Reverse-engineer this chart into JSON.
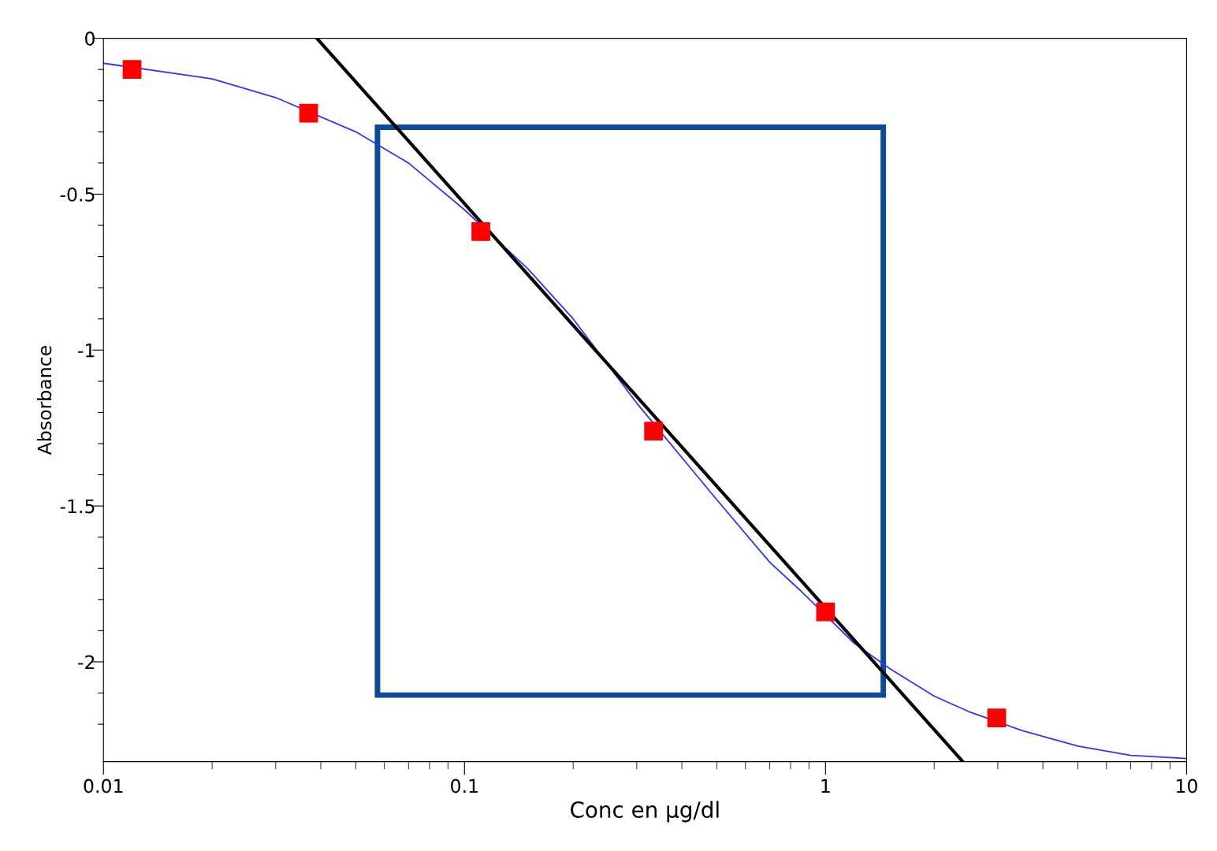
{
  "chart_data": {
    "type": "scatter",
    "xlabel": "Conc en µg/dl",
    "ylabel": "Absorbance",
    "log": "x",
    "grid": false,
    "legend": false,
    "xlim": [
      0.01,
      10
    ],
    "xticks": [
      0.01,
      0.1,
      1,
      10
    ],
    "ylim": [
      -2.32,
      0
    ],
    "yticks": [
      0,
      {
        "value": -0.1,
        "label": null
      },
      {
        "value": -0.2,
        "label": null
      },
      {
        "value": -0.3,
        "label": null
      },
      {
        "value": -0.4,
        "label": null
      },
      -0.5,
      {
        "value": -0.6,
        "label": null
      },
      {
        "value": -0.7,
        "label": null
      },
      {
        "value": -0.8,
        "label": null
      },
      {
        "value": -0.9,
        "label": null
      },
      -1,
      {
        "value": -1.1,
        "label": null
      },
      {
        "value": -1.2,
        "label": null
      },
      {
        "value": -1.3,
        "label": null
      },
      {
        "value": -1.4,
        "label": null
      },
      -1.5,
      {
        "value": -1.6,
        "label": null
      },
      {
        "value": -1.7,
        "label": null
      },
      {
        "value": -1.8,
        "label": null
      },
      {
        "value": -1.9,
        "label": null
      },
      -2,
      {
        "value": -2.1,
        "label": null
      },
      {
        "value": -2.2,
        "label": null
      }
    ],
    "series": [
      {
        "type": "line",
        "color": "#3333ff",
        "marker": "none",
        "line_style": "solid",
        "x": [
          0.01,
          0.02,
          0.03,
          0.05,
          0.07,
          0.1,
          0.15,
          0.2,
          0.3,
          0.5,
          0.7,
          0.85,
          1.2,
          1.5,
          2,
          2.5,
          3.5,
          5,
          7,
          10
        ],
        "values": [
          -0.08,
          -0.13,
          -0.19,
          -0.3,
          -0.4,
          -0.55,
          -0.74,
          -0.9,
          -1.17,
          -1.48,
          -1.68,
          -1.77,
          -1.94,
          -2.02,
          -2.11,
          -2.16,
          -2.22,
          -2.27,
          -2.3,
          -2.31
        ]
      },
      {
        "type": "line",
        "color": "#000000",
        "marker": "none",
        "line_style": "solid",
        "x": [
          0.039,
          2.4
        ],
        "values": [
          0,
          -2.32
        ]
      },
      {
        "color": "#ff0000",
        "marker": "square",
        "x": [
          0.012,
          0.037,
          0.111,
          0.334,
          1.0,
          2.98
        ],
        "values": [
          -0.1,
          -0.24,
          -0.62,
          -1.26,
          -1.84,
          -2.18
        ]
      }
    ]
  }
}
